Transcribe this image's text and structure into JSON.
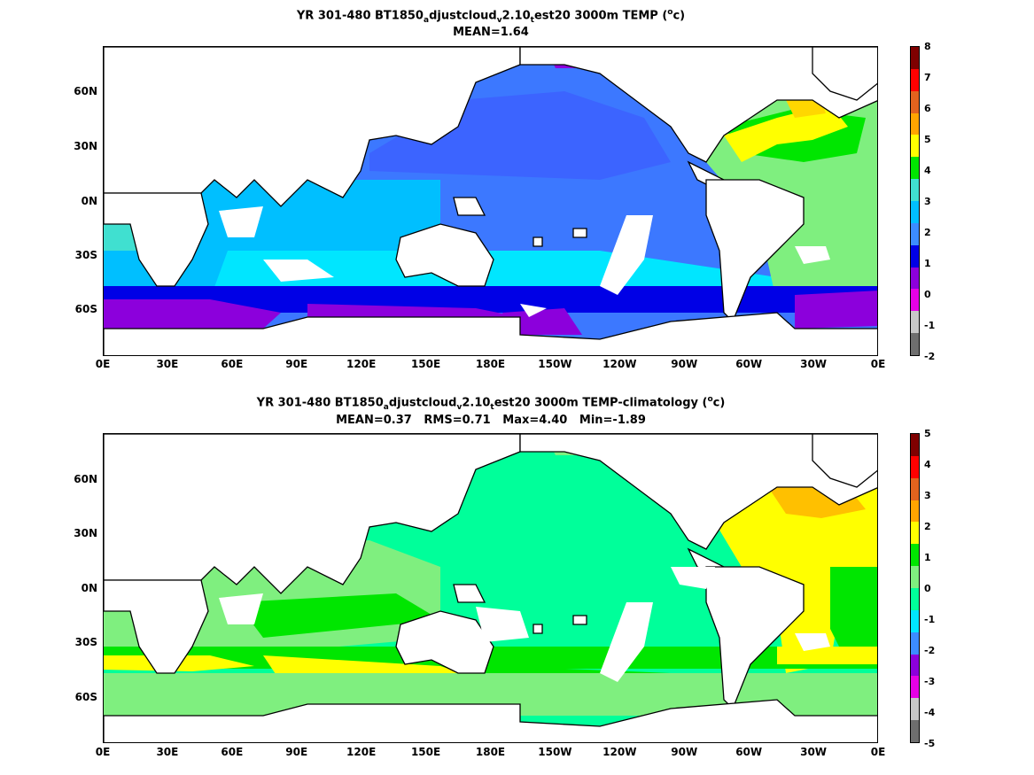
{
  "panels": [
    {
      "title_parts": {
        "a": "YR 301-480 BT1850",
        "s1": "a",
        "b": "djustcloud",
        "s2": "v",
        "c": "2.10",
        "s3": "t",
        "d": "est20 3000m TEMP (",
        "sup": "o",
        "e": "c)"
      },
      "stats": "MEAN=1.64",
      "colorbar_labels": [
        "8",
        "7",
        "6",
        "5",
        "4",
        "3",
        "2",
        "1",
        "0",
        "-1",
        "-2"
      ],
      "colorbar_colors": [
        "#7f0000",
        "#ff0000",
        "#e25a1c",
        "#ffa500",
        "#ffff00",
        "#00ff00",
        "#40e0d0",
        "#00bfff",
        "#3c78ff",
        "#0000e0",
        "#8a00e6",
        "#ffffff",
        "#7f7f7f"
      ],
      "colorbar_colors_used": [
        "#7f0000",
        "#ff0000",
        "#e2631e",
        "#ffa500",
        "#ffff00",
        "#00e600",
        "#7fef7f",
        "#00ffa0",
        "#00e6ff",
        "#3c8cff",
        "#0000e6",
        "#8c00dc",
        "#e600e6",
        "#c8c8c8",
        "#6e6e6e"
      ]
    },
    {
      "title_parts": {
        "a": "YR 301-480 BT1850",
        "s1": "a",
        "b": "djustcloud",
        "s2": "v",
        "c": "2.10",
        "s3": "t",
        "d": "est20 3000m TEMP-climatology (",
        "sup": "o",
        "e": "c)"
      },
      "stats": "MEAN=0.37   RMS=0.71   Max=4.40   Min=-1.89",
      "colorbar_labels": [
        "5",
        "4",
        "3",
        "2",
        "1",
        "0",
        "-1",
        "-2",
        "-3",
        "-4",
        "-5"
      ]
    }
  ],
  "y_ticks": [
    "60N",
    "30N",
    "0N",
    "30S",
    "60S"
  ],
  "x_ticks": [
    "0E",
    "30E",
    "60E",
    "90E",
    "120E",
    "150E",
    "180E",
    "150W",
    "120W",
    "90W",
    "60W",
    "30W",
    "0E"
  ],
  "colors": {
    "land": "#ffffff",
    "coast": "#000000",
    "p1": {
      "purple": "#8c00dc",
      "blue": "#0000e6",
      "medblue": "#3c64ff",
      "lightblue": "#3c8cff",
      "skyblue": "#00bfff",
      "cyan": "#00e6ff",
      "aqua": "#40e0d0",
      "lightgreen": "#7fef7f",
      "green": "#00e600",
      "yellow": "#ffff00",
      "gold": "#ffd700"
    },
    "p2": {
      "seagreen": "#00ff9a",
      "lightgreen": "#7fef7f",
      "green": "#00e600",
      "yellow": "#ffff00",
      "orange": "#ffc000",
      "cyan": "#00e6ff"
    }
  }
}
